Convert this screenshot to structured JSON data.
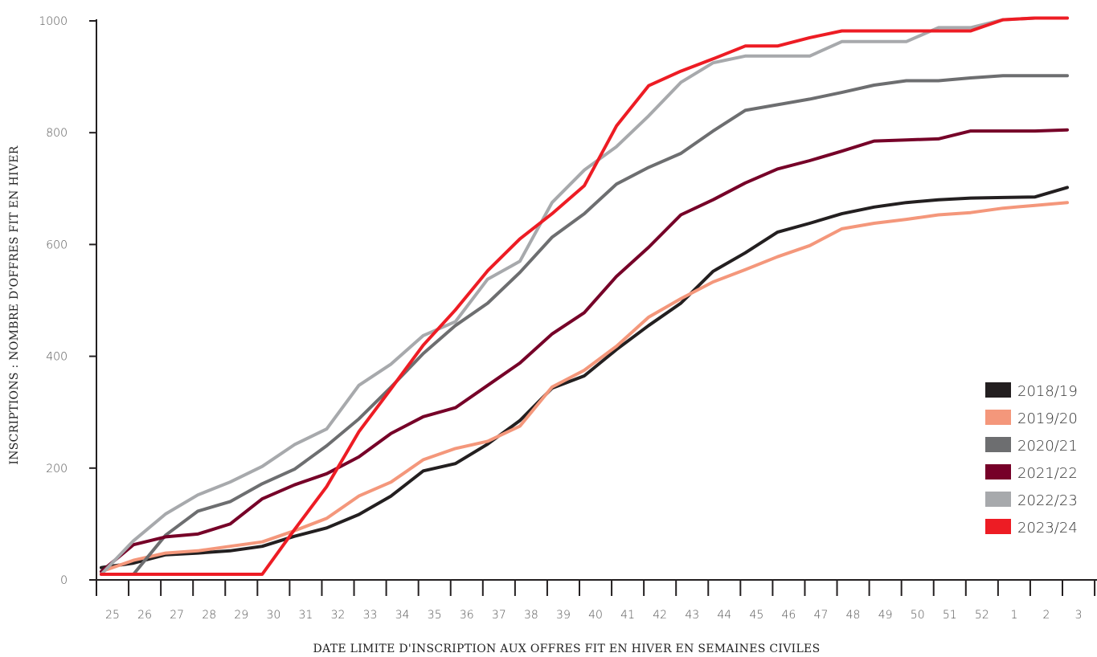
{
  "chart_data": {
    "type": "line",
    "title": "",
    "xlabel": "DATE LIMITE D'INSCRIPTION AUX OFFRES FIT EN HIVER EN SEMAINES CIVILES",
    "ylabel": "INSCRIPTIONS : NOMBRE D'OFFRES FIT EN HIVER",
    "ylim": [
      0,
      1000
    ],
    "yticks": [
      "0",
      "200",
      "400",
      "600",
      "800",
      "1000"
    ],
    "categories": [
      "25",
      "26",
      "27",
      "28",
      "29",
      "30",
      "31",
      "32",
      "33",
      "34",
      "35",
      "36",
      "37",
      "38",
      "39",
      "40",
      "41",
      "42",
      "43",
      "44",
      "45",
      "46",
      "47",
      "48",
      "49",
      "50",
      "51",
      "52",
      "1",
      "2",
      "3"
    ],
    "legend_position": "right",
    "grid": false,
    "series": [
      {
        "name": "2018/19",
        "color": "#231f20",
        "values": [
          22,
          30,
          45,
          48,
          52,
          60,
          78,
          93,
          117,
          150,
          195,
          208,
          243,
          285,
          343,
          365,
          412,
          455,
          495,
          552,
          585,
          622,
          638,
          655,
          667,
          675,
          680,
          683,
          684,
          685,
          702
        ]
      },
      {
        "name": "2019/20",
        "color": "#f4977b",
        "values": [
          15,
          35,
          48,
          52,
          60,
          68,
          88,
          110,
          150,
          175,
          215,
          235,
          248,
          275,
          345,
          375,
          418,
          470,
          503,
          533,
          555,
          578,
          598,
          628,
          638,
          645,
          653,
          657,
          665,
          670,
          675
        ]
      },
      {
        "name": "2020/21",
        "color": "#6d6e70",
        "values": [
          10,
          10,
          80,
          123,
          140,
          172,
          198,
          240,
          288,
          345,
          405,
          455,
          495,
          550,
          613,
          655,
          708,
          738,
          763,
          803,
          840,
          850,
          860,
          872,
          885,
          893,
          893,
          898,
          902,
          902,
          902
        ]
      },
      {
        "name": "2021/22",
        "color": "#760028",
        "values": [
          15,
          63,
          77,
          82,
          100,
          145,
          170,
          190,
          220,
          262,
          292,
          308,
          348,
          388,
          440,
          478,
          543,
          595,
          653,
          680,
          710,
          735,
          750,
          767,
          785,
          787,
          789,
          803,
          803,
          803,
          805
        ]
      },
      {
        "name": "2022/23",
        "color": "#a7a9ac",
        "values": [
          10,
          70,
          118,
          152,
          175,
          203,
          242,
          270,
          348,
          386,
          437,
          462,
          538,
          570,
          675,
          733,
          775,
          830,
          890,
          925,
          937,
          937,
          937,
          963,
          963,
          963,
          988,
          988,
          1002,
          1005,
          1005
        ]
      },
      {
        "name": "2023/24",
        "color": "#ed1c24",
        "values": [
          10,
          10,
          10,
          10,
          10,
          10,
          90,
          167,
          265,
          342,
          420,
          483,
          553,
          610,
          655,
          705,
          812,
          884,
          910,
          932,
          955,
          955,
          970,
          982,
          982,
          982,
          982,
          982,
          1002,
          1005,
          1005
        ]
      }
    ]
  }
}
